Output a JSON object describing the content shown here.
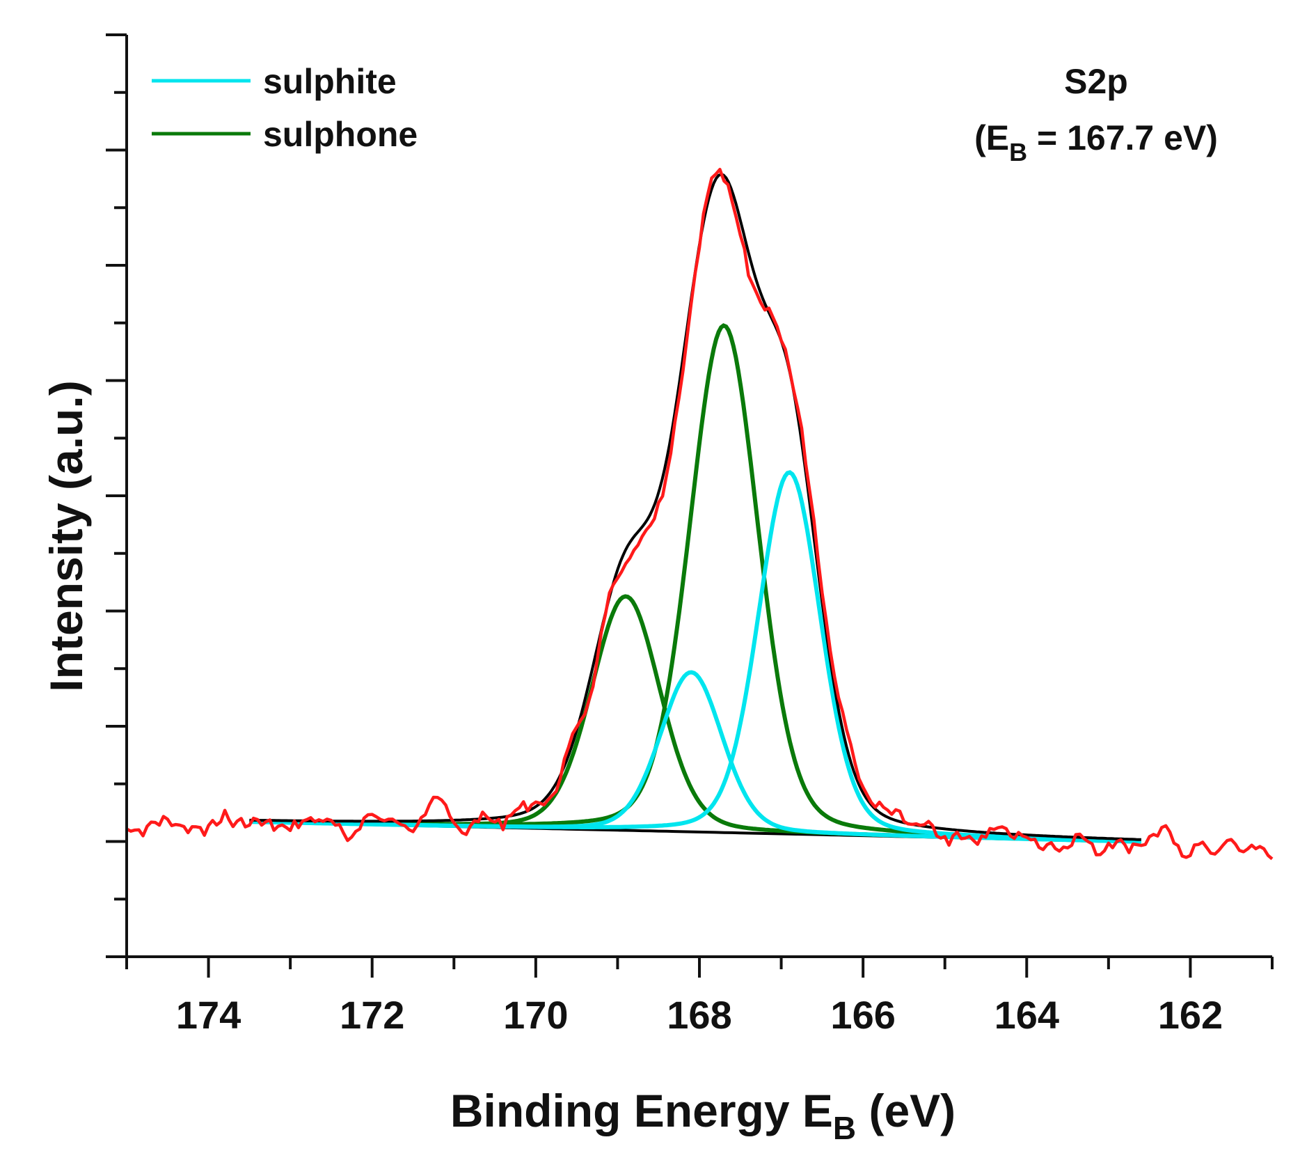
{
  "chart_data": {
    "type": "line",
    "title": "",
    "xlabel": {
      "main": "Binding Energy E",
      "sub": "B",
      "suffix": " (eV)"
    },
    "ylabel": "Intensity (a.u.)",
    "xlim": [
      175,
      161
    ],
    "ylim": [
      -0.2,
      1.1
    ],
    "x_ticks": [
      174,
      172,
      170,
      168,
      166,
      164,
      162
    ],
    "x_minor_ticks": [
      175,
      173,
      171,
      169,
      167,
      165,
      163,
      161
    ],
    "y_ticklabels_shown": false,
    "annotation": {
      "line1": "S2p",
      "line2_prefix": "(E",
      "line2_sub": "B",
      "line2_suffix": " = 167.7 eV)"
    },
    "legend": {
      "position": "top-left",
      "entries": [
        {
          "name": "sulphite",
          "color": "#00e5ee"
        },
        {
          "name": "sulphone",
          "color": "#0a7a0a"
        }
      ]
    },
    "series": [
      {
        "name": "sulphone (main)",
        "role": "sulphone",
        "color": "#0a7a0a",
        "shape": "voigt",
        "center": 167.7,
        "height": 0.715,
        "width": 0.42,
        "range": [
          173.5,
          162.6
        ]
      },
      {
        "name": "sulphone (minor)",
        "role": "sulphone",
        "color": "#0a7a0a",
        "shape": "voigt",
        "center": 168.9,
        "height": 0.33,
        "width": 0.42,
        "range": [
          173.5,
          162.6
        ]
      },
      {
        "name": "sulphite (main)",
        "role": "sulphite",
        "color": "#00e5ee",
        "shape": "voigt",
        "center": 166.9,
        "height": 0.51,
        "width": 0.38,
        "range": [
          173.5,
          162.6
        ]
      },
      {
        "name": "sulphite (minor)",
        "role": "sulphite",
        "color": "#00e5ee",
        "shape": "voigt",
        "center": 168.1,
        "height": 0.225,
        "width": 0.38,
        "range": [
          173.5,
          162.6
        ]
      },
      {
        "name": "envelope fit",
        "role": "fit",
        "color": "#000000",
        "range": [
          173.5,
          162.6
        ]
      },
      {
        "name": "background",
        "role": "background",
        "color": "#000000",
        "range": [
          173.5,
          162.6
        ],
        "values_at_range": [
          -0.01,
          -0.038
        ]
      },
      {
        "name": "measured spectrum",
        "role": "data",
        "color": "#ff1a1a",
        "x_start": 175,
        "x_end": 161,
        "noise_amplitude": 0.022,
        "noise_seed": 7
      }
    ]
  }
}
